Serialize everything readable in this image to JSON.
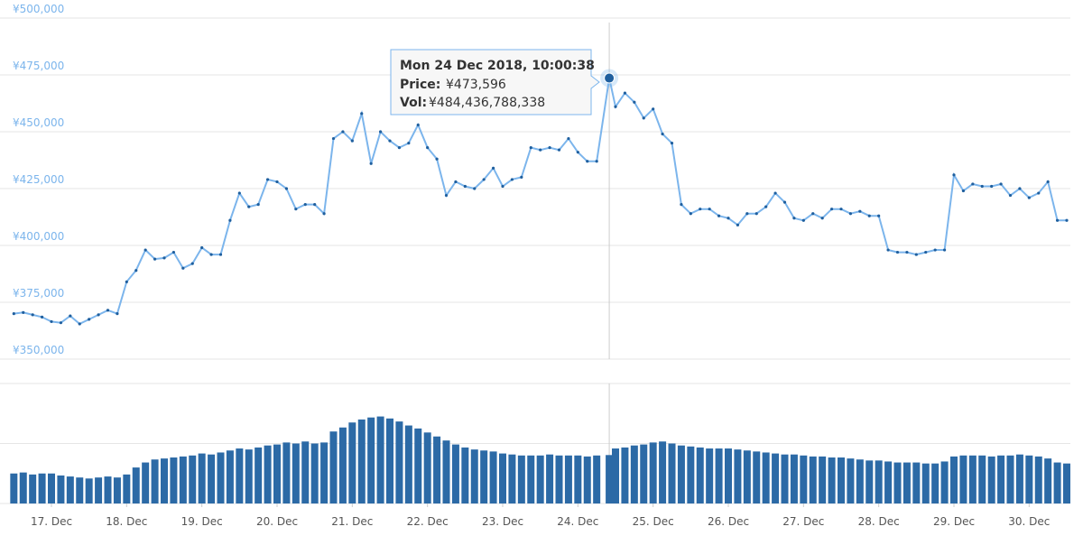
{
  "chart_data": [
    {
      "type": "line",
      "color": "#7cb5ec",
      "marker_color": "#1f5f9e",
      "x": [
        16.5,
        16.625,
        16.75,
        16.875,
        17,
        17.125,
        17.25,
        17.375,
        17.5,
        17.625,
        17.75,
        17.875,
        18,
        18.125,
        18.25,
        18.375,
        18.5,
        18.625,
        18.75,
        18.875,
        19,
        19.125,
        19.25,
        19.375,
        19.5,
        19.625,
        19.75,
        19.875,
        20,
        20.125,
        20.25,
        20.375,
        20.5,
        20.625,
        20.75,
        20.875,
        21,
        21.125,
        21.25,
        21.375,
        21.5,
        21.625,
        21.75,
        21.875,
        22,
        22.125,
        22.25,
        22.375,
        22.5,
        22.625,
        22.75,
        22.875,
        23,
        23.125,
        23.25,
        23.375,
        23.5,
        23.625,
        23.75,
        23.875,
        24,
        24.125,
        24.25,
        24.417,
        24.5,
        24.625,
        24.75,
        24.875,
        25,
        25.125,
        25.25,
        25.375,
        25.5,
        25.625,
        25.75,
        25.875,
        26,
        26.125,
        26.25,
        26.375,
        26.5,
        26.625,
        26.75,
        26.875,
        27,
        27.125,
        27.25,
        27.375,
        27.5,
        27.625,
        27.75,
        27.875,
        28,
        28.125,
        28.25,
        28.375,
        28.5,
        28.625,
        28.75,
        28.875,
        29,
        29.125,
        29.25,
        29.375,
        29.5,
        29.625,
        29.75,
        29.875,
        30,
        30.125,
        30.25,
        30.375,
        30.5
      ],
      "values": [
        370000,
        370500,
        369500,
        368500,
        366500,
        366000,
        369000,
        365500,
        367500,
        369500,
        371500,
        370000,
        384000,
        389000,
        398000,
        394000,
        394500,
        397000,
        390000,
        392000,
        399000,
        396000,
        396000,
        411000,
        423000,
        417000,
        418000,
        429000,
        428000,
        425000,
        416000,
        418000,
        418000,
        414000,
        447000,
        450000,
        446000,
        458000,
        436000,
        450000,
        446000,
        443000,
        445000,
        453000,
        443000,
        438000,
        422000,
        428000,
        426000,
        425000,
        429000,
        434000,
        426000,
        429000,
        430000,
        443000,
        442000,
        443000,
        442000,
        447000,
        441000,
        437000,
        437000,
        473596,
        461000,
        467000,
        463000,
        456000,
        460000,
        449000,
        445000,
        418000,
        414000,
        416000,
        416000,
        413000,
        412000,
        409000,
        414000,
        414000,
        417000,
        423000,
        419000,
        412000,
        411000,
        414000,
        412000,
        416000,
        416000,
        414000,
        415000,
        413000,
        413000,
        398000,
        397000,
        397000,
        396000,
        397000,
        398000,
        398000,
        431000,
        424000,
        427000,
        426000,
        426000,
        427000,
        422000,
        425000,
        421000,
        423000,
        428000,
        411000,
        411000
      ],
      "xlim": [
        16.46,
        30.5
      ],
      "ylim": [
        350000,
        500000
      ],
      "yticks": [
        {
          "value": 350000,
          "label": "¥350,000"
        },
        {
          "value": 375000,
          "label": "¥375,000"
        },
        {
          "value": 400000,
          "label": "¥400,000"
        },
        {
          "value": 425000,
          "label": "¥425,000"
        },
        {
          "value": 450000,
          "label": "¥450,000"
        },
        {
          "value": 475000,
          "label": "¥475,000"
        },
        {
          "value": 500000,
          "label": "¥500,000"
        }
      ],
      "grid": true,
      "tooltip": {
        "point": 63,
        "date": "Mon 24 Dec 2018, 10:00:38",
        "price_label": "Price:",
        "price": "¥473,596",
        "vol_label": "Vol:",
        "vol": "¥484,436,788,338"
      }
    },
    {
      "type": "bar",
      "color": "#2c6aa6",
      "x": [
        16.5,
        16.625,
        16.75,
        16.875,
        17,
        17.125,
        17.25,
        17.375,
        17.5,
        17.625,
        17.75,
        17.875,
        18,
        18.125,
        18.25,
        18.375,
        18.5,
        18.625,
        18.75,
        18.875,
        19,
        19.125,
        19.25,
        19.375,
        19.5,
        19.625,
        19.75,
        19.875,
        20,
        20.125,
        20.25,
        20.375,
        20.5,
        20.625,
        20.75,
        20.875,
        21,
        21.125,
        21.25,
        21.375,
        21.5,
        21.625,
        21.75,
        21.875,
        22,
        22.125,
        22.25,
        22.375,
        22.5,
        22.625,
        22.75,
        22.875,
        23,
        23.125,
        23.25,
        23.375,
        23.5,
        23.625,
        23.75,
        23.875,
        24,
        24.125,
        24.25,
        24.417,
        24.5,
        24.625,
        24.75,
        24.875,
        25,
        25.125,
        25.25,
        25.375,
        25.5,
        25.625,
        25.75,
        25.875,
        26,
        26.125,
        26.25,
        26.375,
        26.5,
        26.625,
        26.75,
        26.875,
        27,
        27.125,
        27.25,
        27.375,
        27.5,
        27.625,
        27.75,
        27.875,
        28,
        28.125,
        28.25,
        28.375,
        28.5,
        28.625,
        28.75,
        28.875,
        29,
        29.125,
        29.25,
        29.375,
        29.5,
        29.625,
        29.75,
        29.875,
        30,
        30.125,
        30.25,
        30.375,
        30.5
      ],
      "values": [
        300000000000.0,
        310000000000.0,
        290000000000.0,
        300000000000.0,
        300000000000.0,
        280000000000.0,
        270000000000.0,
        260000000000.0,
        250000000000.0,
        260000000000.0,
        270000000000.0,
        260000000000.0,
        290000000000.0,
        360000000000.0,
        410000000000.0,
        440000000000.0,
        450000000000.0,
        460000000000.0,
        470000000000.0,
        480000000000.0,
        500000000000.0,
        490000000000.0,
        510000000000.0,
        530000000000.0,
        550000000000.0,
        540000000000.0,
        560000000000.0,
        580000000000.0,
        590000000000.0,
        610000000000.0,
        600000000000.0,
        620000000000.0,
        600000000000.0,
        610000000000.0,
        720000000000.0,
        760000000000.0,
        810000000000.0,
        840000000000.0,
        860000000000.0,
        870000000000.0,
        850000000000.0,
        820000000000.0,
        780000000000.0,
        750000000000.0,
        710000000000.0,
        670000000000.0,
        630000000000.0,
        590000000000.0,
        560000000000.0,
        540000000000.0,
        530000000000.0,
        520000000000.0,
        500000000000.0,
        490000000000.0,
        480000000000.0,
        480000000000.0,
        480000000000.0,
        490000000000.0,
        480000000000.0,
        480000000000.0,
        480000000000.0,
        470000000000.0,
        480000000000.0,
        484436788338,
        550000000000.0,
        560000000000.0,
        580000000000.0,
        590000000000.0,
        610000000000.0,
        620000000000.0,
        600000000000.0,
        580000000000.0,
        570000000000.0,
        560000000000.0,
        550000000000.0,
        550000000000.0,
        550000000000.0,
        540000000000.0,
        530000000000.0,
        520000000000.0,
        510000000000.0,
        500000000000.0,
        490000000000.0,
        490000000000.0,
        480000000000.0,
        470000000000.0,
        470000000000.0,
        460000000000.0,
        460000000000.0,
        450000000000.0,
        440000000000.0,
        430000000000.0,
        430000000000.0,
        420000000000.0,
        410000000000.0,
        410000000000.0,
        410000000000.0,
        400000000000.0,
        400000000000.0,
        420000000000.0,
        470000000000.0,
        480000000000.0,
        480000000000.0,
        480000000000.0,
        470000000000.0,
        480000000000.0,
        480000000000.0,
        490000000000.0,
        480000000000.0,
        470000000000.0,
        450000000000.0,
        410000000000.0,
        400000000000.0
      ],
      "xlim": [
        16.46,
        30.5
      ],
      "ylim": [
        0,
        1200000000000.0
      ],
      "yticks": [
        0,
        600000000000.0,
        1200000000000.0
      ],
      "grid": true,
      "xticks": [
        {
          "value": 17,
          "label": "17. Dec"
        },
        {
          "value": 18,
          "label": "18. Dec"
        },
        {
          "value": 19,
          "label": "19. Dec"
        },
        {
          "value": 20,
          "label": "20. Dec"
        },
        {
          "value": 21,
          "label": "21. Dec"
        },
        {
          "value": 22,
          "label": "22. Dec"
        },
        {
          "value": 23,
          "label": "23. Dec"
        },
        {
          "value": 24,
          "label": "24. Dec"
        },
        {
          "value": 25,
          "label": "25. Dec"
        },
        {
          "value": 26,
          "label": "26. Dec"
        },
        {
          "value": 27,
          "label": "27. Dec"
        },
        {
          "value": 28,
          "label": "28. Dec"
        },
        {
          "value": 29,
          "label": "29. Dec"
        },
        {
          "value": 30,
          "label": "30. Dec"
        }
      ]
    }
  ]
}
